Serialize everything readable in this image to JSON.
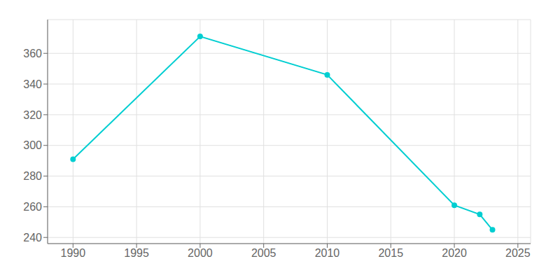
{
  "chart_data": {
    "type": "line",
    "x": [
      1990,
      2000,
      2010,
      2020,
      2022,
      2023
    ],
    "values": [
      291,
      371,
      346,
      261,
      255,
      245
    ],
    "color": "#00CED1",
    "marker": "circle",
    "xlim": [
      1988,
      2026
    ],
    "ylim": [
      236,
      382
    ],
    "xticks": [
      1990,
      1995,
      2000,
      2005,
      2010,
      2015,
      2020,
      2025
    ],
    "yticks": [
      240,
      260,
      280,
      300,
      320,
      340,
      360
    ],
    "grid": true
  }
}
